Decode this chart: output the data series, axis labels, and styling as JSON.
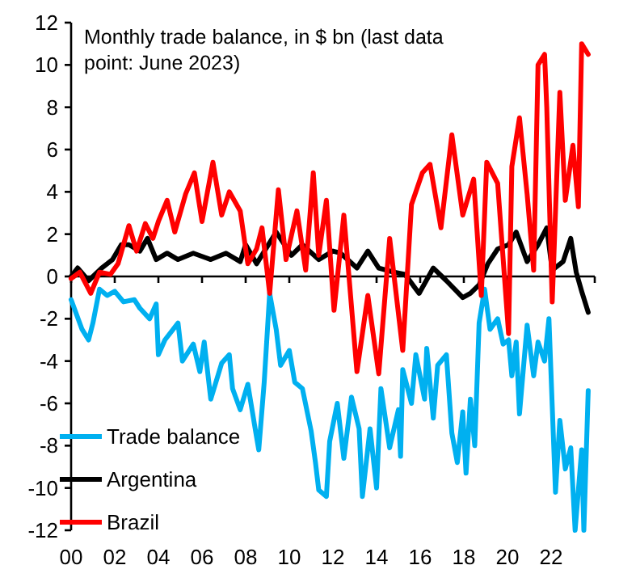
{
  "chart_data": {
    "type": "line",
    "title": "Monthly trade balance, in $ bn (last data point: June 2023)",
    "xlim": [
      2000,
      2024
    ],
    "xticks": [
      {
        "value": 2000,
        "label": "00"
      },
      {
        "value": 2002,
        "label": "02"
      },
      {
        "value": 2004,
        "label": "04"
      },
      {
        "value": 2006,
        "label": "06"
      },
      {
        "value": 2008,
        "label": "08"
      },
      {
        "value": 2010,
        "label": "10"
      },
      {
        "value": 2012,
        "label": "12"
      },
      {
        "value": 2014,
        "label": "14"
      },
      {
        "value": 2016,
        "label": "16"
      },
      {
        "value": 2018,
        "label": "18"
      },
      {
        "value": 2020,
        "label": "20"
      },
      {
        "value": 2022,
        "label": "22"
      },
      {
        "value": 2024,
        "label": null
      }
    ],
    "ylim": [
      -12,
      12
    ],
    "yticks": [
      -12,
      -10,
      -8,
      -6,
      -4,
      -2,
      0,
      2,
      4,
      6,
      8,
      10,
      12
    ],
    "legend": "bottom left",
    "marker": "none",
    "line_style": "solid",
    "series": [
      {
        "name": "Trade balance",
        "color": "#00b0f0",
        "x": [
          2000,
          2000.5,
          2000.8,
          2001,
          2001.3,
          2001.65,
          2002,
          2002.4,
          2002.9,
          2003.15,
          2003.6,
          2003.9,
          2004,
          2004.3,
          2004.9,
          2005.1,
          2005.6,
          2005.9,
          2006.1,
          2006.4,
          2006.9,
          2007.25,
          2007.4,
          2007.75,
          2008.1,
          2008.5,
          2008.6,
          2008.85,
          2009.1,
          2009.4,
          2009.6,
          2010,
          2010.25,
          2010.6,
          2011,
          2011.2,
          2011.35,
          2011.7,
          2011.85,
          2012.2,
          2012.5,
          2012.85,
          2013.2,
          2013.35,
          2013.7,
          2014,
          2014.2,
          2014.6,
          2015,
          2015.1,
          2015.2,
          2015.6,
          2015.8,
          2016.2,
          2016.3,
          2016.6,
          2016.8,
          2017.2,
          2017.45,
          2017.7,
          2017.95,
          2018.1,
          2018.3,
          2018.5,
          2018.7,
          2018.95,
          2019.2,
          2019.55,
          2019.8,
          2020.05,
          2020.2,
          2020.4,
          2020.55,
          2020.9,
          2021.2,
          2021.4,
          2021.7,
          2021.9,
          2022.2,
          2022.4,
          2022.65,
          2022.9,
          2023.1,
          2023.4,
          2023.5,
          2023.7
        ],
        "values": [
          -1.1,
          -2.5,
          -3,
          -2.2,
          -0.6,
          -0.9,
          -0.7,
          -1.2,
          -1.1,
          -1.5,
          -2,
          -1.3,
          -3.7,
          -3,
          -2.2,
          -4,
          -3.2,
          -4.5,
          -3.1,
          -5.8,
          -4.1,
          -3.7,
          -5.3,
          -6.3,
          -5.1,
          -7.6,
          -8.2,
          -5,
          -0.8,
          -2.5,
          -4.2,
          -3.5,
          -5,
          -5.3,
          -7.3,
          -8.8,
          -10.1,
          -10.4,
          -7.8,
          -6,
          -8.6,
          -5.7,
          -7.2,
          -10.4,
          -7.2,
          -10,
          -5.3,
          -8.1,
          -6.3,
          -8.5,
          -4.4,
          -6,
          -3.7,
          -5.8,
          -3.4,
          -6.7,
          -4.2,
          -3.7,
          -7.4,
          -8.8,
          -6.4,
          -9.3,
          -5.8,
          -8,
          -2.2,
          -0.6,
          -2.5,
          -2,
          -3.2,
          -3,
          -4.7,
          -3.1,
          -6.5,
          -2.3,
          -4.7,
          -3.1,
          -4,
          -2,
          -10.2,
          -6.8,
          -9.1,
          -8.1,
          -12,
          -8.2,
          -12,
          -5.4
        ]
      },
      {
        "name": "Argentina",
        "color": "#000000",
        "x": [
          2000,
          2000.3,
          2000.8,
          2001.4,
          2001.9,
          2002.3,
          2002.65,
          2003.15,
          2003.5,
          2003.9,
          2004.4,
          2004.9,
          2005.6,
          2006.4,
          2007.1,
          2007.75,
          2008,
          2008.5,
          2009.4,
          2010.1,
          2010.6,
          2011.35,
          2012,
          2012.35,
          2013.1,
          2013.6,
          2014.1,
          2014.8,
          2015.3,
          2015.95,
          2016.6,
          2017.2,
          2017.95,
          2018.3,
          2018.7,
          2019.1,
          2019.55,
          2020.05,
          2020.4,
          2020.9,
          2021.4,
          2021.8,
          2022.05,
          2022.55,
          2022.9,
          2023.15,
          2023.4,
          2023.7
        ],
        "values": [
          0,
          0.4,
          -0.2,
          0.4,
          0.8,
          1.5,
          1.5,
          1.2,
          1.8,
          0.8,
          1.1,
          0.8,
          1.1,
          0.8,
          1.1,
          0.7,
          1.5,
          0.6,
          2.1,
          1,
          1.5,
          0.8,
          1.2,
          1.1,
          0.4,
          1.2,
          0.4,
          0.2,
          0.1,
          -0.8,
          0.4,
          -0.2,
          -1,
          -0.8,
          -0.4,
          0.6,
          1.3,
          1.5,
          2.1,
          0.7,
          1.5,
          2.3,
          0.3,
          0.7,
          1.8,
          0.2,
          -0.7,
          -1.7
        ]
      },
      {
        "name": "Brazil",
        "color": "#ff0000",
        "x": [
          2000,
          2000.4,
          2000.9,
          2001.3,
          2001.8,
          2002.15,
          2002.65,
          2003,
          2003.4,
          2003.75,
          2004,
          2004.4,
          2004.75,
          2005.25,
          2005.65,
          2006,
          2006.5,
          2006.9,
          2007.25,
          2007.75,
          2008.1,
          2008.5,
          2008.75,
          2009.1,
          2009.5,
          2009.85,
          2010.35,
          2010.75,
          2011.1,
          2011.35,
          2011.7,
          2012.05,
          2012.5,
          2013.1,
          2013.6,
          2014.1,
          2014.6,
          2015.2,
          2015.6,
          2016.1,
          2016.45,
          2016.95,
          2017.45,
          2017.95,
          2018.45,
          2018.8,
          2019.05,
          2019.55,
          2020.05,
          2020.2,
          2020.55,
          2020.9,
          2021.2,
          2021.4,
          2021.7,
          2021.8,
          2022.05,
          2022.4,
          2022.65,
          2023,
          2023.25,
          2023.4,
          2023.7
        ],
        "values": [
          -0.1,
          0.2,
          -0.8,
          0.2,
          0.1,
          0.6,
          2.4,
          1.2,
          2.5,
          1.8,
          2.6,
          3.6,
          2.1,
          3.9,
          4.9,
          2.6,
          5.4,
          2.9,
          4,
          3.1,
          0.6,
          1.3,
          2.3,
          -0.8,
          4.1,
          0.8,
          3.1,
          0.3,
          4.9,
          1,
          3.6,
          -1.6,
          2.9,
          -4.5,
          -0.9,
          -4.6,
          1.8,
          -3.5,
          3.4,
          4.9,
          5.3,
          2.3,
          6.7,
          2.9,
          4.6,
          -0.9,
          5.4,
          4.4,
          -2.7,
          5.2,
          7.5,
          3.9,
          0.3,
          10,
          10.5,
          8,
          -1.2,
          8.7,
          3.6,
          6.2,
          3.3,
          11,
          10.5
        ]
      }
    ]
  }
}
